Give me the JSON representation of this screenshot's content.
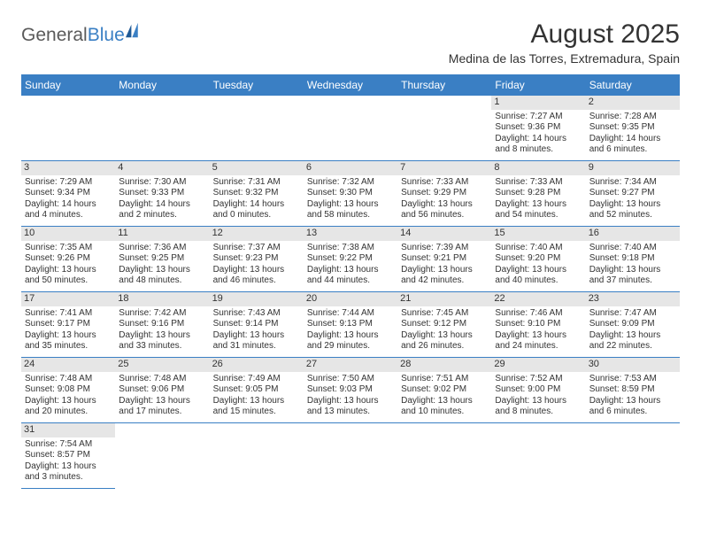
{
  "logo": {
    "text1": "General",
    "text2": "Blue"
  },
  "title": "August 2025",
  "location": "Medina de las Torres, Extremadura, Spain",
  "colors": {
    "header_bg": "#3a7fc4",
    "header_text": "#ffffff",
    "row_border": "#3a7fc4",
    "daynum_bg": "#e6e6e6",
    "text": "#333333",
    "logo_gray": "#5a5a5a",
    "logo_blue": "#3a7fc4",
    "background": "#ffffff"
  },
  "typography": {
    "title_fontsize": 30,
    "location_fontsize": 14,
    "header_fontsize": 12,
    "daynum_fontsize": 11,
    "cell_fontsize": 10,
    "logo_fontsize": 21
  },
  "day_headers": [
    "Sunday",
    "Monday",
    "Tuesday",
    "Wednesday",
    "Thursday",
    "Friday",
    "Saturday"
  ],
  "weeks": [
    [
      null,
      null,
      null,
      null,
      null,
      {
        "n": "1",
        "sr": "Sunrise: 7:27 AM",
        "ss": "Sunset: 9:36 PM",
        "dl": "Daylight: 14 hours and 8 minutes."
      },
      {
        "n": "2",
        "sr": "Sunrise: 7:28 AM",
        "ss": "Sunset: 9:35 PM",
        "dl": "Daylight: 14 hours and 6 minutes."
      }
    ],
    [
      {
        "n": "3",
        "sr": "Sunrise: 7:29 AM",
        "ss": "Sunset: 9:34 PM",
        "dl": "Daylight: 14 hours and 4 minutes."
      },
      {
        "n": "4",
        "sr": "Sunrise: 7:30 AM",
        "ss": "Sunset: 9:33 PM",
        "dl": "Daylight: 14 hours and 2 minutes."
      },
      {
        "n": "5",
        "sr": "Sunrise: 7:31 AM",
        "ss": "Sunset: 9:32 PM",
        "dl": "Daylight: 14 hours and 0 minutes."
      },
      {
        "n": "6",
        "sr": "Sunrise: 7:32 AM",
        "ss": "Sunset: 9:30 PM",
        "dl": "Daylight: 13 hours and 58 minutes."
      },
      {
        "n": "7",
        "sr": "Sunrise: 7:33 AM",
        "ss": "Sunset: 9:29 PM",
        "dl": "Daylight: 13 hours and 56 minutes."
      },
      {
        "n": "8",
        "sr": "Sunrise: 7:33 AM",
        "ss": "Sunset: 9:28 PM",
        "dl": "Daylight: 13 hours and 54 minutes."
      },
      {
        "n": "9",
        "sr": "Sunrise: 7:34 AM",
        "ss": "Sunset: 9:27 PM",
        "dl": "Daylight: 13 hours and 52 minutes."
      }
    ],
    [
      {
        "n": "10",
        "sr": "Sunrise: 7:35 AM",
        "ss": "Sunset: 9:26 PM",
        "dl": "Daylight: 13 hours and 50 minutes."
      },
      {
        "n": "11",
        "sr": "Sunrise: 7:36 AM",
        "ss": "Sunset: 9:25 PM",
        "dl": "Daylight: 13 hours and 48 minutes."
      },
      {
        "n": "12",
        "sr": "Sunrise: 7:37 AM",
        "ss": "Sunset: 9:23 PM",
        "dl": "Daylight: 13 hours and 46 minutes."
      },
      {
        "n": "13",
        "sr": "Sunrise: 7:38 AM",
        "ss": "Sunset: 9:22 PM",
        "dl": "Daylight: 13 hours and 44 minutes."
      },
      {
        "n": "14",
        "sr": "Sunrise: 7:39 AM",
        "ss": "Sunset: 9:21 PM",
        "dl": "Daylight: 13 hours and 42 minutes."
      },
      {
        "n": "15",
        "sr": "Sunrise: 7:40 AM",
        "ss": "Sunset: 9:20 PM",
        "dl": "Daylight: 13 hours and 40 minutes."
      },
      {
        "n": "16",
        "sr": "Sunrise: 7:40 AM",
        "ss": "Sunset: 9:18 PM",
        "dl": "Daylight: 13 hours and 37 minutes."
      }
    ],
    [
      {
        "n": "17",
        "sr": "Sunrise: 7:41 AM",
        "ss": "Sunset: 9:17 PM",
        "dl": "Daylight: 13 hours and 35 minutes."
      },
      {
        "n": "18",
        "sr": "Sunrise: 7:42 AM",
        "ss": "Sunset: 9:16 PM",
        "dl": "Daylight: 13 hours and 33 minutes."
      },
      {
        "n": "19",
        "sr": "Sunrise: 7:43 AM",
        "ss": "Sunset: 9:14 PM",
        "dl": "Daylight: 13 hours and 31 minutes."
      },
      {
        "n": "20",
        "sr": "Sunrise: 7:44 AM",
        "ss": "Sunset: 9:13 PM",
        "dl": "Daylight: 13 hours and 29 minutes."
      },
      {
        "n": "21",
        "sr": "Sunrise: 7:45 AM",
        "ss": "Sunset: 9:12 PM",
        "dl": "Daylight: 13 hours and 26 minutes."
      },
      {
        "n": "22",
        "sr": "Sunrise: 7:46 AM",
        "ss": "Sunset: 9:10 PM",
        "dl": "Daylight: 13 hours and 24 minutes."
      },
      {
        "n": "23",
        "sr": "Sunrise: 7:47 AM",
        "ss": "Sunset: 9:09 PM",
        "dl": "Daylight: 13 hours and 22 minutes."
      }
    ],
    [
      {
        "n": "24",
        "sr": "Sunrise: 7:48 AM",
        "ss": "Sunset: 9:08 PM",
        "dl": "Daylight: 13 hours and 20 minutes."
      },
      {
        "n": "25",
        "sr": "Sunrise: 7:48 AM",
        "ss": "Sunset: 9:06 PM",
        "dl": "Daylight: 13 hours and 17 minutes."
      },
      {
        "n": "26",
        "sr": "Sunrise: 7:49 AM",
        "ss": "Sunset: 9:05 PM",
        "dl": "Daylight: 13 hours and 15 minutes."
      },
      {
        "n": "27",
        "sr": "Sunrise: 7:50 AM",
        "ss": "Sunset: 9:03 PM",
        "dl": "Daylight: 13 hours and 13 minutes."
      },
      {
        "n": "28",
        "sr": "Sunrise: 7:51 AM",
        "ss": "Sunset: 9:02 PM",
        "dl": "Daylight: 13 hours and 10 minutes."
      },
      {
        "n": "29",
        "sr": "Sunrise: 7:52 AM",
        "ss": "Sunset: 9:00 PM",
        "dl": "Daylight: 13 hours and 8 minutes."
      },
      {
        "n": "30",
        "sr": "Sunrise: 7:53 AM",
        "ss": "Sunset: 8:59 PM",
        "dl": "Daylight: 13 hours and 6 minutes."
      }
    ],
    [
      {
        "n": "31",
        "sr": "Sunrise: 7:54 AM",
        "ss": "Sunset: 8:57 PM",
        "dl": "Daylight: 13 hours and 3 minutes."
      },
      null,
      null,
      null,
      null,
      null,
      null
    ]
  ]
}
